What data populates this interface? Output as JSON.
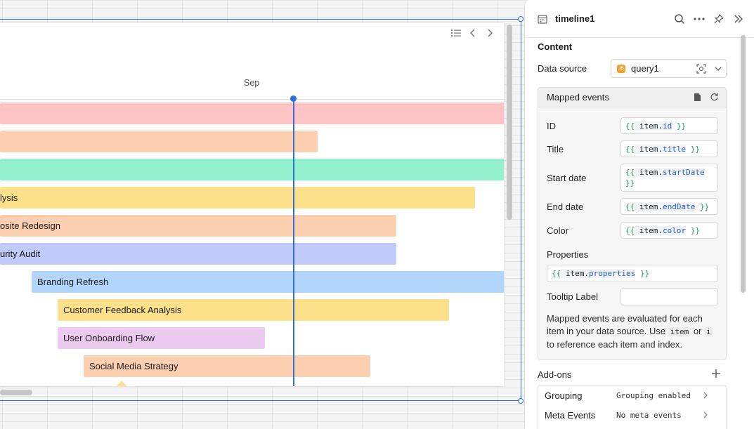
{
  "timeline": {
    "month_label": "Sep",
    "events": [
      {
        "label": "",
        "color": "#fec3c4"
      },
      {
        "label": "",
        "color": "#fdcfb1"
      },
      {
        "label": "",
        "color": "#93f1cd"
      },
      {
        "label": "lysis",
        "color": "#fde08a"
      },
      {
        "label": "osite Redesign",
        "color": "#fdcfb1"
      },
      {
        "label": "urity Audit",
        "color": "#c0cbfa"
      },
      {
        "label": "Branding Refresh",
        "color": "#b2d5fb"
      },
      {
        "label": "Customer Feedback Analysis",
        "color": "#fde08a"
      },
      {
        "label": "User Onboarding Flow",
        "color": "#ecc9ef"
      },
      {
        "label": "Social Media Strategy",
        "color": "#fdcfb1"
      }
    ]
  },
  "panel": {
    "title": "timeline1",
    "content_heading": "Content",
    "data_source": {
      "label": "Data source",
      "value": "query1",
      "badge": "JS"
    },
    "mapped_events": {
      "title": "Mapped events",
      "fields": [
        {
          "label": "ID",
          "open": "{{",
          "obj": " item.",
          "prop": "id",
          "close": " }}"
        },
        {
          "label": "Title",
          "open": "{{",
          "obj": " item.",
          "prop": "title",
          "close": " }}"
        },
        {
          "label": "Start date",
          "open": "{{",
          "obj": " item.",
          "prop": "startDate",
          "close": "}}"
        },
        {
          "label": "End date",
          "open": "{{",
          "obj": " item.",
          "prop": "endDate",
          "close": " }}"
        },
        {
          "label": "Color",
          "open": "{{",
          "obj": " item.",
          "prop": "color",
          "close": " }}"
        }
      ],
      "properties": {
        "label": "Properties",
        "open": "{{",
        "obj": " item.",
        "prop": "properties",
        "close": " }}"
      },
      "tooltip": {
        "label": "Tooltip Label",
        "value": ""
      },
      "helper": {
        "before": "Mapped events are evaluated for each item in your data source. Use ",
        "code1": "item",
        "mid": " or ",
        "code2": "i",
        "after": " to reference each item and index."
      }
    },
    "addons": {
      "title": "Add-ons",
      "items": [
        {
          "name": "Grouping",
          "value": "Grouping enabled"
        },
        {
          "name": "Meta Events",
          "value": "No meta events"
        }
      ]
    }
  },
  "colors": {
    "accent": "#2d6fdb",
    "today_line": "#2d6fdb"
  }
}
